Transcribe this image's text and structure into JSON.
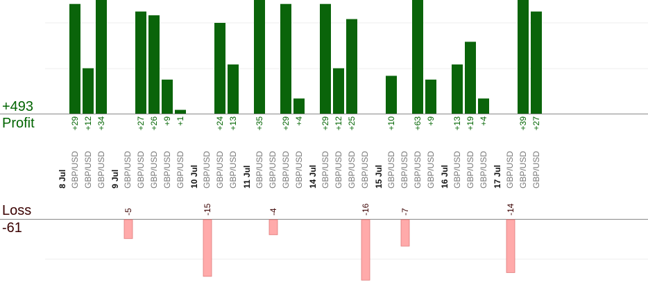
{
  "summary": {
    "profit_total": "+493",
    "profit_label": "Profit",
    "loss_label": "Loss",
    "loss_total": "-61"
  },
  "colors": {
    "profit_bar": "#0a640a",
    "loss_bar": "#ffaaaa",
    "profit_text": "#006400",
    "pair_text": "#777777",
    "date_text": "#111111"
  },
  "chart_data": {
    "type": "bar",
    "groups": [
      {
        "date": "8 Jul",
        "trades": [
          {
            "pair": "GBP/USD",
            "value": 29,
            "label": "+29"
          },
          {
            "pair": "GBP/USD",
            "value": 12,
            "label": "+12"
          },
          {
            "pair": "GBP/USD",
            "value": 34,
            "label": "+34"
          }
        ]
      },
      {
        "date": "9 Jul",
        "trades": [
          {
            "pair": "GBP/USD",
            "value": -5,
            "label": "-5"
          },
          {
            "pair": "GBP/USD",
            "value": 27,
            "label": "+27"
          },
          {
            "pair": "GBP/USD",
            "value": 26,
            "label": "+26"
          },
          {
            "pair": "GBP/USD",
            "value": 9,
            "label": "+9"
          },
          {
            "pair": "GBP/USD",
            "value": 1,
            "label": "+1"
          }
        ]
      },
      {
        "date": "10 Jul",
        "trades": [
          {
            "pair": "GBP/USD",
            "value": -15,
            "label": "-15"
          },
          {
            "pair": "GBP/USD",
            "value": 24,
            "label": "+24"
          },
          {
            "pair": "GBP/USD",
            "value": 13,
            "label": "+13"
          }
        ]
      },
      {
        "date": "11 Jul",
        "trades": [
          {
            "pair": "GBP/USD",
            "value": 35,
            "label": "+35"
          },
          {
            "pair": "GBP/USD",
            "value": -4,
            "label": "-4"
          },
          {
            "pair": "GBP/USD",
            "value": 29,
            "label": "+29"
          },
          {
            "pair": "GBP/USD",
            "value": 4,
            "label": "+4"
          }
        ]
      },
      {
        "date": "14 Jul",
        "trades": [
          {
            "pair": "GBP/USD",
            "value": 29,
            "label": "+29"
          },
          {
            "pair": "GBP/USD",
            "value": 12,
            "label": "+12"
          },
          {
            "pair": "GBP/USD",
            "value": 25,
            "label": "+25"
          },
          {
            "pair": "GBP/USD",
            "value": -16,
            "label": "-16"
          }
        ]
      },
      {
        "date": "15 Jul",
        "trades": [
          {
            "pair": "GBP/USD",
            "value": 10,
            "label": "+10"
          },
          {
            "pair": "GBP/USD",
            "value": -7,
            "label": "-7"
          },
          {
            "pair": "GBP/USD",
            "value": 63,
            "label": "+63"
          },
          {
            "pair": "GBP/USD",
            "value": 9,
            "label": "+9"
          }
        ]
      },
      {
        "date": "16 Jul",
        "trades": [
          {
            "pair": "GBP/USD",
            "value": 13,
            "label": "+13"
          },
          {
            "pair": "GBP/USD",
            "value": 19,
            "label": "+19"
          },
          {
            "pair": "GBP/USD",
            "value": 4,
            "label": "+4"
          }
        ]
      },
      {
        "date": "17 Jul",
        "trades": [
          {
            "pair": "GBP/USD",
            "value": -14,
            "label": "-14"
          },
          {
            "pair": "GBP/USD",
            "value": 39,
            "label": "+39"
          },
          {
            "pair": "GBP/USD",
            "value": 27,
            "label": "+27"
          }
        ]
      }
    ]
  }
}
